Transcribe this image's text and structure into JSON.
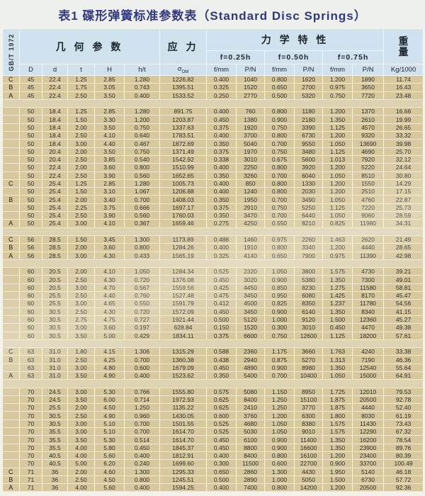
{
  "title": "表1 碟形弹簧标准参数表（Standard Disc Springs）",
  "standard": "GB/T 1972",
  "header": {
    "geometry": "几 何 参 数",
    "stress": "应 力",
    "mechanical": "力 学 特 性",
    "weight_line1": "重",
    "weight_line2": "量",
    "deflections": [
      "f=0.25h",
      "f=0.50h",
      "f=0.75h"
    ],
    "geo_cols": [
      "D",
      "d",
      "t",
      "H",
      "h/t"
    ],
    "sigma_main": "σ",
    "sigma_sub": "OM",
    "fmm": "f/mm",
    "pn": "P/N",
    "weight_unit": "Kg/1000"
  },
  "rows": [
    [
      "C",
      "45",
      "22.4",
      "1.25",
      "2.85",
      "1.280",
      "1226.82",
      "0.400",
      "1040",
      "0.800",
      "1620",
      "1.200",
      "1890",
      "11.74"
    ],
    [
      "B",
      "45",
      "22.4",
      "1.75",
      "3.05",
      "0.743",
      "1395.51",
      "0.325",
      "1520",
      "0.650",
      "2700",
      "0.975",
      "3650",
      "16.43"
    ],
    [
      "A",
      "45",
      "22.4",
      "2.50",
      "3.50",
      "0.400",
      "1533.52",
      "0.250",
      "2770",
      "0.500",
      "5320",
      "0.750",
      "7720",
      "23.48"
    ],
    [],
    [
      "",
      "50",
      "18.4",
      "1.25",
      "2.85",
      "1.280",
      "891.75",
      "0.400",
      "760",
      "0.800",
      "1180",
      "1.200",
      "1370",
      "16.66"
    ],
    [
      "",
      "50",
      "18.4",
      "1.50",
      "3.30",
      "1.200",
      "1203.87",
      "0.450",
      "1380",
      "0.900",
      "2180",
      "1.350",
      "2610",
      "19.99"
    ],
    [
      "",
      "50",
      "18.4",
      "2.00",
      "3.50",
      "0.750",
      "1337.63",
      "0.375",
      "1920",
      "0.750",
      "3390",
      "1.125",
      "4570",
      "26.65"
    ],
    [
      "",
      "50",
      "18.4",
      "2.50",
      "4.10",
      "0.640",
      "1783.51",
      "0.400",
      "3700",
      "0.800",
      "6730",
      "1.200",
      "9320",
      "33.32"
    ],
    [
      "",
      "50",
      "18.4",
      "3.00",
      "4.40",
      "0.467",
      "1872.69",
      "0.350",
      "5040",
      "0.700",
      "9550",
      "1.050",
      "13690",
      "39.98"
    ],
    [
      "",
      "50",
      "20.4",
      "2.00",
      "3.50",
      "0.750",
      "1371.49",
      "0.375",
      "1970",
      "0.750",
      "3480",
      "1.125",
      "4690",
      "25.70"
    ],
    [
      "",
      "50",
      "20.4",
      "2.50",
      "3.85",
      "0.540",
      "1542.92",
      "0.338",
      "3010",
      "0.675",
      "5600",
      "1.013",
      "7920",
      "32.12"
    ],
    [
      "",
      "50",
      "22.4",
      "2.00",
      "3.60",
      "0.800",
      "1510.99",
      "0.400",
      "2250",
      "0.800",
      "3920",
      "1.200",
      "5220",
      "24.64"
    ],
    [
      "",
      "50",
      "22.4",
      "2.50",
      "3.90",
      "0.560",
      "1652.65",
      "0.350",
      "3260",
      "0.700",
      "6040",
      "1.050",
      "8510",
      "30.80"
    ],
    [
      "C",
      "50",
      "25.4",
      "1.25",
      "2.85",
      "1.280",
      "1005.73",
      "0.400",
      "850",
      "0.800",
      "1330",
      "1.200",
      "1550",
      "14.29"
    ],
    [
      "",
      "50",
      "25.4",
      "1.50",
      "3.10",
      "1.067",
      "1206.88",
      "0.400",
      "1240",
      "0.800",
      "2030",
      "1.200",
      "2510",
      "17.15"
    ],
    [
      "B",
      "50",
      "25.4",
      "2.00",
      "3.40",
      "0.700",
      "1408.03",
      "0.350",
      "1950",
      "0.700",
      "3490",
      "1.050",
      "4760",
      "22.87"
    ],
    [
      "",
      "50",
      "25.4",
      "2.25",
      "3.75",
      "0.666",
      "1697.17",
      "0.375",
      "2910",
      "0.750",
      "5250",
      "1.125",
      "7220",
      "25.73"
    ],
    [
      "",
      "50",
      "25.4",
      "2.50",
      "3.90",
      "0.560",
      "1760.03",
      "0.350",
      "3470",
      "0.700",
      "6440",
      "1.050",
      "9060",
      "28.59"
    ],
    [
      "A",
      "50",
      "25.4",
      "3.00",
      "4.10",
      "0.367",
      "1659.46",
      "0.275",
      "4250",
      "0.550",
      "8210",
      "0.825",
      "11980",
      "34.31"
    ],
    [],
    [
      "C",
      "56",
      "28.5",
      "1.50",
      "3.45",
      "1.300",
      "1173.89",
      "0.488",
      "1460",
      "0.975",
      "2260",
      "1.463",
      "2620",
      "21.49"
    ],
    [
      "B",
      "56",
      "28.5",
      "2.00",
      "3.60",
      "0.800",
      "1284.26",
      "0.400",
      "1910",
      "0.800",
      "3340",
      "1.200",
      "4440",
      "28.65"
    ],
    [
      "A",
      "56",
      "28.5",
      "3.00",
      "4.30",
      "0.433",
      "1565.19",
      "0.325",
      "4140",
      "0.650",
      "7900",
      "0.975",
      "11390",
      "42.98"
    ],
    [],
    [
      "",
      "60",
      "20.5",
      "2.00",
      "4.10",
      "1.050",
      "1284.34",
      "0.525",
      "2320",
      "1.050",
      "3800",
      "1.575",
      "4730",
      "39.21"
    ],
    [
      "",
      "60",
      "20.5",
      "2.50",
      "4.30",
      "0.720",
      "1376.08",
      "0.450",
      "3020",
      "0.900",
      "5380",
      "1.350",
      "7300",
      "49.01"
    ],
    [
      "",
      "60",
      "20.5",
      "3.00",
      "4.70",
      "0.567",
      "1559.56",
      "0.425",
      "4450",
      "0.850",
      "8230",
      "1.275",
      "11580",
      "58.81"
    ],
    [
      "",
      "60",
      "25.5",
      "2.50",
      "4.40",
      "0.760",
      "1527.48",
      "0.475",
      "3450",
      "0.950",
      "6080",
      "1.425",
      "8170",
      "45.47"
    ],
    [
      "",
      "60",
      "25.5",
      "3.00",
      "4.65",
      "0.550",
      "1591.79",
      "0.412",
      "4500",
      "0.825",
      "8350",
      "1.237",
      "11780",
      "54.56"
    ],
    [
      "",
      "60",
      "30.5",
      "2.50",
      "4.30",
      "0.720",
      "1572.09",
      "0.450",
      "3450",
      "0.900",
      "6140",
      "1.350",
      "8340",
      "41.15"
    ],
    [
      "",
      "60",
      "30.5",
      "2.75",
      "4.75",
      "0.727",
      "1921.44",
      "0.500",
      "5120",
      "1.000",
      "9120",
      "1.500",
      "12360",
      "45.27"
    ],
    [
      "",
      "60",
      "30.5",
      "3.00",
      "3.60",
      "0.197",
      "628.84",
      "0.150",
      "1520",
      "0.300",
      "3010",
      "0.450",
      "4470",
      "49.38"
    ],
    [
      "",
      "60",
      "30.5",
      "3.50",
      "5.00",
      "0.429",
      "1834.11",
      "0.375",
      "6600",
      "0.750",
      "12600",
      "1.125",
      "18200",
      "57.61"
    ],
    [],
    [
      "C",
      "63",
      "31.0",
      "1.80",
      "4.15",
      "1.306",
      "1315.29",
      "0.588",
      "2360",
      "1.175",
      "3660",
      "1.763",
      "4240",
      "33.38"
    ],
    [
      "B",
      "63",
      "31.0",
      "2.50",
      "4.25",
      "0.700",
      "1360.38",
      "0.438",
      "2940",
      "0.875",
      "5270",
      "1.313",
      "7190",
      "46.36"
    ],
    [
      "",
      "63",
      "31.0",
      "3.00",
      "4.80",
      "0.600",
      "1679.09",
      "0.450",
      "4890",
      "0.900",
      "8980",
      "1.350",
      "12540",
      "55.64"
    ],
    [
      "A",
      "63",
      "31.0",
      "3.50",
      "4.90",
      "0.400",
      "1523.62",
      "0.350",
      "5400",
      "0.700",
      "10400",
      "1.050",
      "15000",
      "64.91"
    ],
    [],
    [
      "",
      "70",
      "24.5",
      "3.00",
      "5.30",
      "0.766",
      "1555.80",
      "0.575",
      "5080",
      "1.150",
      "8950",
      "1.725",
      "12010",
      "79.53"
    ],
    [
      "",
      "70",
      "24.5",
      "3.50",
      "6.00",
      "0.714",
      "1972.93",
      "0.625",
      "8400",
      "1.250",
      "15100",
      "1.875",
      "20500",
      "92.78"
    ],
    [
      "",
      "70",
      "25.5",
      "2.00",
      "4.50",
      "1.250",
      "1135.22",
      "0.625",
      "2410",
      "1.250",
      "3770",
      "1.875",
      "4440",
      "52.40"
    ],
    [
      "",
      "70",
      "30.5",
      "2.50",
      "4.90",
      "0.960",
      "1430.05",
      "0.600",
      "3760",
      "1.200",
      "6300",
      "1.800",
      "8030",
      "61.19"
    ],
    [
      "",
      "70",
      "30.5",
      "3.00",
      "5.10",
      "0.700",
      "1501.55",
      "0.525",
      "4680",
      "1.050",
      "8380",
      "1.575",
      "11430",
      "73.43"
    ],
    [
      "",
      "70",
      "35.5",
      "3.00",
      "5.10",
      "0.700",
      "1614.70",
      "0.525",
      "5030",
      "1.050",
      "9010",
      "1.575",
      "12290",
      "67.32"
    ],
    [
      "",
      "70",
      "35.5",
      "3.50",
      "5.30",
      "0.514",
      "1614.70",
      "0.450",
      "6100",
      "0.900",
      "11400",
      "1.350",
      "16200",
      "78.54"
    ],
    [
      "",
      "70",
      "35.5",
      "4.00",
      "5.80",
      "0.450",
      "1845.37",
      "0.450",
      "8800",
      "0.900",
      "16600",
      "1.350",
      "23900",
      "89.76"
    ],
    [
      "",
      "70",
      "40.5",
      "4.00",
      "5.60",
      "0.400",
      "1812.91",
      "0.400",
      "8400",
      "0.800",
      "16100",
      "1.200",
      "23400",
      "80.39"
    ],
    [
      "",
      "70",
      "40.5",
      "5.00",
      "6.20",
      "0.240",
      "1699.60",
      "0.300",
      "11500",
      "0.600",
      "22700",
      "0.900",
      "33700",
      "100.49"
    ],
    [
      "C",
      "71",
      "36",
      "2.00",
      "4.60",
      "1.300",
      "1295.33",
      "0.650",
      "2860",
      "1.300",
      "4430",
      "1.950",
      "5140",
      "46.18"
    ],
    [
      "B",
      "71",
      "36",
      "2.50",
      "4.50",
      "0.800",
      "1245.51",
      "0.500",
      "2890",
      "1.000",
      "5050",
      "1.500",
      "6730",
      "57.72"
    ],
    [
      "A",
      "71",
      "36",
      "4.00",
      "5.60",
      "0.400",
      "1594.25",
      "0.400",
      "7400",
      "0.800",
      "14200",
      "1.200",
      "20500",
      "92.36"
    ]
  ]
}
